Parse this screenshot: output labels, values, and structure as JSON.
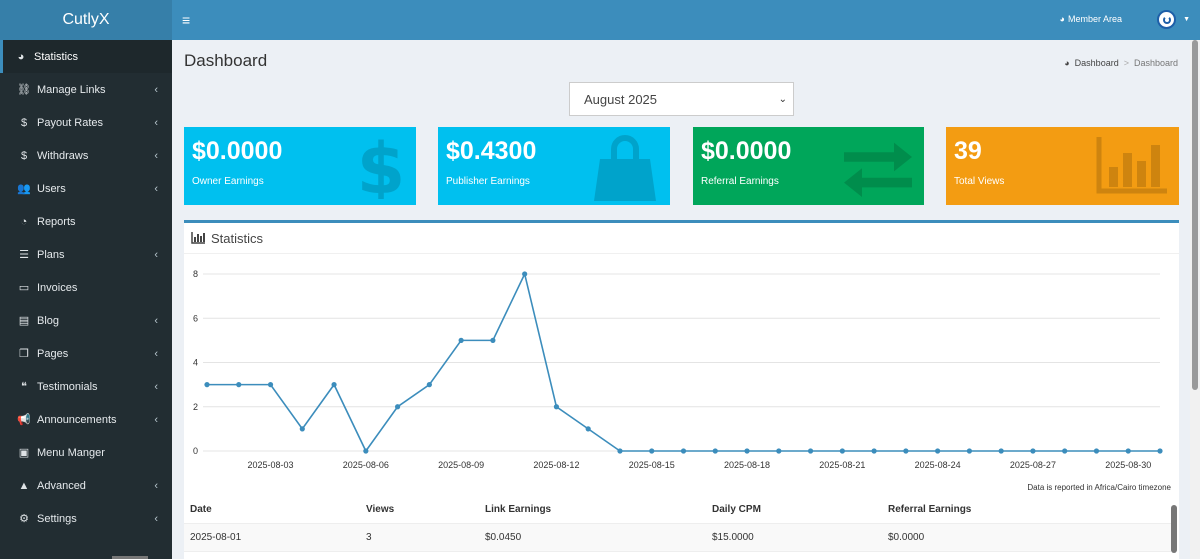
{
  "app": {
    "title": "CutlyX"
  },
  "sidebar": {
    "items": [
      {
        "label": "Statistics",
        "icon": "tachometer-icon",
        "glyph": "◕",
        "chevron": false,
        "active": true
      },
      {
        "label": "Manage Links",
        "icon": "link-icon",
        "glyph": "⛓",
        "chevron": true
      },
      {
        "label": "Payout Rates",
        "icon": "dollar-icon",
        "glyph": "$",
        "chevron": true
      },
      {
        "label": "Withdraws",
        "icon": "dollar-icon",
        "glyph": "$",
        "chevron": true
      },
      {
        "label": "Users",
        "icon": "users-icon",
        "glyph": "👥",
        "chevron": true
      },
      {
        "label": "Reports",
        "icon": "pie-chart-icon",
        "glyph": "◔",
        "chevron": false
      },
      {
        "label": "Plans",
        "icon": "list-icon",
        "glyph": "☰",
        "chevron": true
      },
      {
        "label": "Invoices",
        "icon": "credit-card-icon",
        "glyph": "▭",
        "chevron": false
      },
      {
        "label": "Blog",
        "icon": "file-icon",
        "glyph": "▤",
        "chevron": true
      },
      {
        "label": "Pages",
        "icon": "copy-icon",
        "glyph": "❐",
        "chevron": true
      },
      {
        "label": "Testimonials",
        "icon": "quote-icon",
        "glyph": "❝",
        "chevron": true
      },
      {
        "label": "Announcements",
        "icon": "bullhorn-icon",
        "glyph": "📢",
        "chevron": true
      },
      {
        "label": "Menu Manger",
        "icon": "caret-square-icon",
        "glyph": "▣",
        "chevron": false
      },
      {
        "label": "Advanced",
        "icon": "warning-icon",
        "glyph": "▲",
        "chevron": true
      },
      {
        "label": "Settings",
        "icon": "cogs-icon",
        "glyph": "⚙",
        "chevron": true
      }
    ]
  },
  "header": {
    "member_area": "Member Area"
  },
  "page": {
    "title": "Dashboard",
    "breadcrumb": {
      "home": "Dashboard",
      "current": "Dashboard"
    }
  },
  "month_select": {
    "value": "August 2025"
  },
  "stat_boxes": [
    {
      "value": "$0.0000",
      "label": "Owner Earnings",
      "icon": "dollar-icon",
      "color": "#00c0ef"
    },
    {
      "value": "$0.4300",
      "label": "Publisher Earnings",
      "icon": "shopping-bag-icon",
      "color": "#00c0ef"
    },
    {
      "value": "$0.0000",
      "label": "Referral Earnings",
      "icon": "exchange-icon",
      "color": "#00a65a"
    },
    {
      "value": "39",
      "label": "Total Views",
      "icon": "bar-chart-icon",
      "color": "#f39c12"
    }
  ],
  "statistics": {
    "title": "Statistics",
    "timezone_note": "Data is reported in Africa/Cairo timezone"
  },
  "chart_data": {
    "type": "line",
    "x": [
      "2025-08-01",
      "2025-08-02",
      "2025-08-03",
      "2025-08-04",
      "2025-08-05",
      "2025-08-06",
      "2025-08-07",
      "2025-08-08",
      "2025-08-09",
      "2025-08-10",
      "2025-08-11",
      "2025-08-12",
      "2025-08-13",
      "2025-08-14",
      "2025-08-15",
      "2025-08-16",
      "2025-08-17",
      "2025-08-18",
      "2025-08-19",
      "2025-08-20",
      "2025-08-21",
      "2025-08-22",
      "2025-08-23",
      "2025-08-24",
      "2025-08-25",
      "2025-08-26",
      "2025-08-27",
      "2025-08-28",
      "2025-08-29",
      "2025-08-30",
      "2025-08-31"
    ],
    "series": [
      {
        "values": [
          3,
          3,
          3,
          1,
          3,
          0,
          2,
          3,
          5,
          5,
          8,
          2,
          1,
          0,
          0,
          0,
          0,
          0,
          0,
          0,
          0,
          0,
          0,
          0,
          0,
          0,
          0,
          0,
          0,
          0,
          0
        ]
      }
    ],
    "x_tick_labels": [
      "2025-08-03",
      "2025-08-06",
      "2025-08-09",
      "2025-08-12",
      "2025-08-15",
      "2025-08-18",
      "2025-08-21",
      "2025-08-24",
      "2025-08-27",
      "2025-08-30"
    ],
    "y_ticks": [
      0,
      2,
      4,
      6,
      8
    ],
    "ylim": [
      0,
      8
    ],
    "grid": true,
    "line_color": "#3c8dbc"
  },
  "table": {
    "headers": [
      "Date",
      "Views",
      "Link Earnings",
      "Daily CPM",
      "Referral Earnings"
    ],
    "rows": [
      [
        "2025-08-01",
        "3",
        "$0.0450",
        "$15.0000",
        "$0.0000"
      ]
    ]
  }
}
